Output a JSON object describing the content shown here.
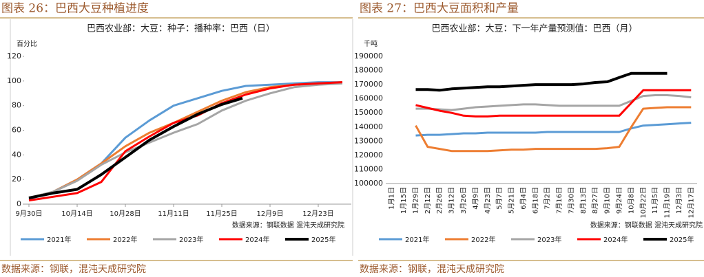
{
  "chart_data": [
    {
      "type": "line",
      "figure_title": "图表 26：巴西大豆种植进度",
      "title": "巴西农业部：大豆：种子：播种率：巴西（日）",
      "y_unit": "百分比",
      "note": "数据来源：钢联数据  混沌天成研究院",
      "source": "数据来源：钢联，混沌天成研究院",
      "x": [
        0,
        7,
        14,
        21,
        28,
        35,
        42,
        49,
        56,
        63,
        70,
        77,
        84,
        91
      ],
      "xlim": [
        -1.4,
        93.6
      ],
      "xticks": [
        {
          "value": 0,
          "label": "9月30日"
        },
        {
          "value": 14,
          "label": "10月14日"
        },
        {
          "value": 28,
          "label": "10月28日"
        },
        {
          "value": 42,
          "label": "11月11日"
        },
        {
          "value": 56,
          "label": "11月25日"
        },
        {
          "value": 70,
          "label": "12月9日"
        },
        {
          "value": 84,
          "label": "12月23日"
        }
      ],
      "ylim": [
        0,
        120
      ],
      "yticks": [
        0,
        20,
        40,
        60,
        80,
        100,
        120
      ],
      "series": [
        {
          "name": "2021年",
          "color": "#5b9bd5",
          "values": [
            4,
            10,
            20,
            33,
            54,
            68,
            80,
            86,
            92,
            96,
            97,
            98,
            99,
            99
          ]
        },
        {
          "name": "2022年",
          "color": "#ed7d31",
          "values": [
            5,
            10,
            20,
            33,
            47,
            58,
            66,
            75,
            84,
            91,
            95,
            97,
            98,
            99
          ]
        },
        {
          "name": "2023年",
          "color": "#a5a5a5",
          "values": [
            5,
            10,
            19,
            32,
            42,
            50,
            58,
            65,
            76,
            84,
            90,
            95,
            97,
            98
          ]
        },
        {
          "name": "2024年",
          "color": "#ff0000",
          "values": [
            3,
            6,
            9,
            18,
            43,
            55,
            66,
            72,
            82,
            89,
            94,
            97,
            98,
            99
          ]
        },
        {
          "name": "2025年",
          "color": "#000000",
          "x": [
            0,
            7,
            14,
            21,
            28,
            35,
            42,
            49,
            56,
            62
          ],
          "values": [
            5,
            9,
            12,
            24,
            38,
            52,
            63,
            73,
            81,
            86
          ]
        }
      ]
    },
    {
      "type": "line",
      "figure_title": "图表 27：巴西大豆面积和产量",
      "title": "巴西农业部：大豆：下一年产量预测值：巴西（月）",
      "y_unit": "千吨",
      "note": "数据来源：钢联数据  混沌天成研究院",
      "source": "数据来源：钢联，混沌天成研究院",
      "categories": [
        "1月1日",
        "1月15日",
        "1月29日",
        "2月12日",
        "2月26日",
        "3月12日",
        "3月26日",
        "4月9日",
        "4月23日",
        "5月7日",
        "5月21日",
        "6月4日",
        "6月18日",
        "7月2日",
        "7月16日",
        "7月30日",
        "8月13日",
        "8月27日",
        "9月10日",
        "9月24日",
        "10月8日",
        "10月22日",
        "11月5日",
        "11月19日",
        "12月3日",
        "12月17日"
      ],
      "ylim": [
        100000,
        190000
      ],
      "yticks": [
        100000,
        110000,
        120000,
        130000,
        140000,
        150000,
        160000,
        170000,
        180000,
        190000
      ],
      "series": [
        {
          "name": "2021年",
          "color": "#5b9bd5",
          "values": [
            null,
            null,
            134000,
            134500,
            134500,
            135000,
            135500,
            135500,
            136000,
            136000,
            136000,
            136000,
            136000,
            136500,
            136500,
            136500,
            136500,
            136500,
            136500,
            136500,
            139000,
            141000,
            141500,
            142000,
            142500,
            143000
          ]
        },
        {
          "name": "2022年",
          "color": "#ed7d31",
          "values": [
            null,
            null,
            141000,
            126000,
            124500,
            123000,
            123000,
            123000,
            123000,
            123500,
            124000,
            124000,
            124500,
            124500,
            124500,
            124500,
            124500,
            124500,
            125000,
            126000,
            140000,
            153000,
            153500,
            154000,
            154000,
            154000
          ]
        },
        {
          "name": "2023年",
          "color": "#a5a5a5",
          "values": [
            null,
            null,
            153000,
            153000,
            152500,
            152000,
            153000,
            154000,
            154500,
            155000,
            155500,
            156000,
            156000,
            155500,
            155000,
            155000,
            155000,
            155000,
            155000,
            155000,
            158500,
            162000,
            162500,
            162500,
            162000,
            161000
          ]
        },
        {
          "name": "2024年",
          "color": "#ff0000",
          "values": [
            null,
            null,
            155500,
            153500,
            151500,
            150000,
            148000,
            147500,
            147500,
            148000,
            148000,
            148000,
            148000,
            148000,
            148000,
            148000,
            148000,
            148000,
            148000,
            148000,
            157000,
            166000,
            166000,
            166000,
            166000,
            166000
          ]
        },
        {
          "name": "2025年",
          "color": "#000000",
          "values": [
            null,
            null,
            166500,
            166500,
            166000,
            167000,
            167500,
            168000,
            168500,
            168500,
            169000,
            169500,
            170000,
            170000,
            170000,
            170000,
            170500,
            171500,
            172000,
            175000,
            178000,
            178000,
            178000,
            178000,
            null,
            null
          ]
        }
      ]
    }
  ]
}
